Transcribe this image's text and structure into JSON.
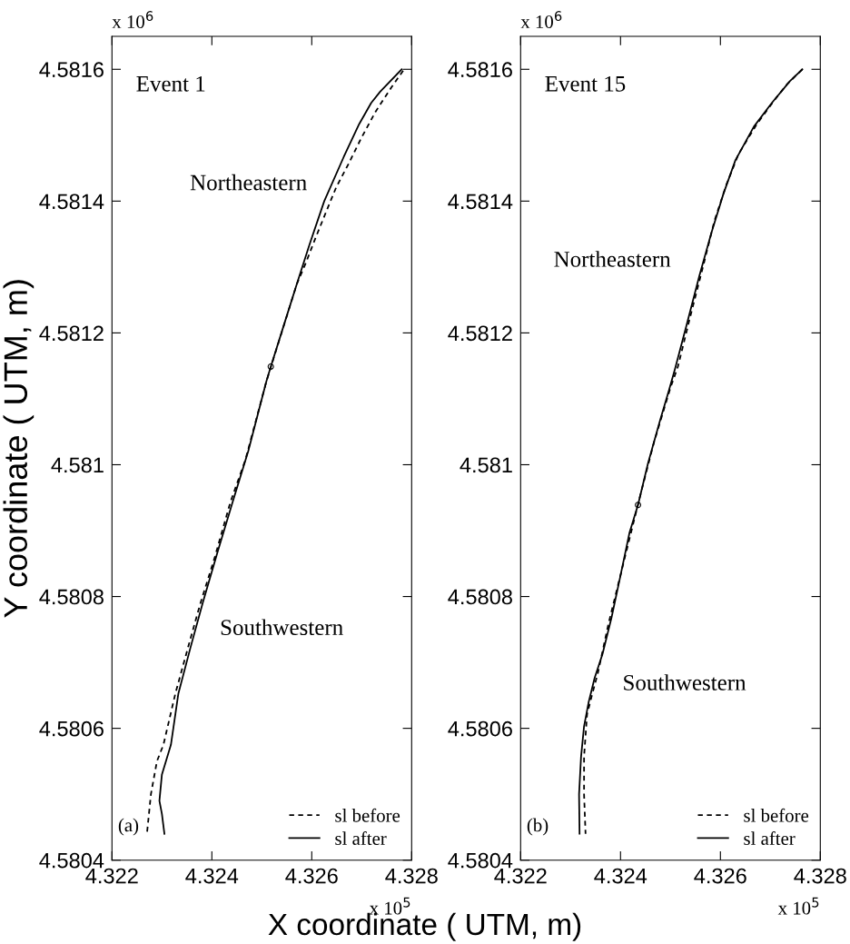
{
  "chart_data": [
    {
      "type": "line",
      "ylabel": "Y coordinate ( UTM, m)",
      "xlim": [
        4.322,
        4.328
      ],
      "ylim": [
        4.5804,
        4.58165
      ],
      "xticks": [
        4.322,
        4.324,
        4.326,
        4.328
      ],
      "yticks": [
        4.5804,
        4.5806,
        4.5808,
        4.581,
        4.5812,
        4.5814,
        4.5816
      ],
      "legend": "bottom right",
      "grid": false,
      "series": [
        {
          "name": "sl before",
          "color": "#000000",
          "line_style": "dashed",
          "marker": "none",
          "x": [
            4.32783,
            4.32759,
            4.32728,
            4.32698,
            4.32674,
            4.32649,
            4.32631,
            4.32607,
            4.32588,
            4.3257,
            4.32509,
            4.32467,
            4.32437,
            4.32406,
            4.32376,
            4.32352,
            4.32327,
            4.32303,
            4.3229,
            4.32278,
            4.3227
          ],
          "values": [
            4.581598,
            4.581572,
            4.581536,
            4.581494,
            4.581457,
            4.581421,
            4.581388,
            4.581343,
            4.581306,
            4.581274,
            4.581126,
            4.581007,
            4.580943,
            4.58086,
            4.580787,
            4.580722,
            4.580653,
            4.580575,
            4.58055,
            4.5805,
            4.58044
          ]
        },
        {
          "name": "sl after",
          "color": "#000000",
          "line_style": "solid",
          "marker": "none",
          "x": [
            4.3278,
            4.32737,
            4.32719,
            4.32695,
            4.32664,
            4.32625,
            4.32595,
            4.3257,
            4.32543,
            4.32518,
            4.32509,
            4.32473,
            4.32443,
            4.32412,
            4.32382,
            4.32357,
            4.32333,
            4.32318,
            4.323,
            4.32295,
            4.323,
            4.32305
          ],
          "values": [
            4.5816,
            4.581566,
            4.581549,
            4.581517,
            4.581467,
            4.5814,
            4.581333,
            4.581274,
            4.581209,
            4.581149,
            4.581126,
            4.581021,
            4.580947,
            4.580869,
            4.580791,
            4.580722,
            4.580653,
            4.580575,
            4.58053,
            4.58049,
            4.58047,
            4.58044
          ]
        },
        {
          "type": "scatter",
          "color": "#000000",
          "marker": "circle",
          "x": [
            4.32518
          ],
          "values": [
            4.581149
          ]
        }
      ],
      "annotations": [
        "Event 1",
        "Northeastern",
        "Southwestern",
        "(a)",
        "x 10$^{6}$",
        "x 10$^{5}$"
      ]
    },
    {
      "type": "line",
      "xlabel": "X coordinate ( UTM, m)",
      "xlim": [
        4.322,
        4.328
      ],
      "ylim": [
        4.5804,
        4.58165
      ],
      "xticks": [
        4.322,
        4.324,
        4.326,
        4.328
      ],
      "yticks": [
        4.5804,
        4.5806,
        4.5808,
        4.581,
        4.5812,
        4.5814,
        4.5816
      ],
      "legend": "bottom right",
      "grid": false,
      "series": [
        {
          "name": "sl before",
          "color": "#000000",
          "line_style": "dashed",
          "marker": "none",
          "x": [
            4.32764,
            4.32733,
            4.32709,
            4.32673,
            4.32636,
            4.32612,
            4.32588,
            4.32564,
            4.32539,
            4.32515,
            4.325,
            4.32467,
            4.32436,
            4.32406,
            4.32376,
            4.32355,
            4.32342,
            4.32333,
            4.32327,
            4.32327,
            4.3233
          ],
          "values": [
            4.5816,
            4.581577,
            4.581554,
            4.581517,
            4.581471,
            4.581425,
            4.58137,
            4.581297,
            4.581223,
            4.581149,
            4.581117,
            4.581034,
            4.580943,
            4.580851,
            4.580759,
            4.580685,
            4.580648,
            4.580621,
            4.580557,
            4.5805,
            4.58044
          ]
        },
        {
          "name": "sl after",
          "color": "#000000",
          "line_style": "solid",
          "marker": "none",
          "x": [
            4.32764,
            4.32739,
            4.32703,
            4.32667,
            4.3263,
            4.32606,
            4.32582,
            4.32558,
            4.32533,
            4.32509,
            4.32497,
            4.32479,
            4.32455,
            4.32435,
            4.32418,
            4.324,
            4.32382,
            4.32364,
            4.32348,
            4.32336,
            4.32327,
            4.32321,
            4.32317,
            4.32318
          ],
          "values": [
            4.5816,
            4.581582,
            4.581549,
            4.581513,
            4.581462,
            4.581411,
            4.581352,
            4.581287,
            4.581214,
            4.581145,
            4.581113,
            4.581067,
            4.581002,
            4.580939,
            4.580897,
            4.580832,
            4.580768,
            4.580713,
            4.580676,
            4.580639,
            4.580603,
            4.580557,
            4.5805,
            4.58044
          ]
        },
        {
          "type": "scatter",
          "color": "#000000",
          "marker": "circle",
          "x": [
            4.32435
          ],
          "values": [
            4.580939
          ]
        }
      ],
      "annotations": [
        "Event 15",
        "Northeastern",
        "Southwestern",
        "(b)",
        "x 10$^{6}$",
        "x 10$^{5}$"
      ]
    }
  ]
}
